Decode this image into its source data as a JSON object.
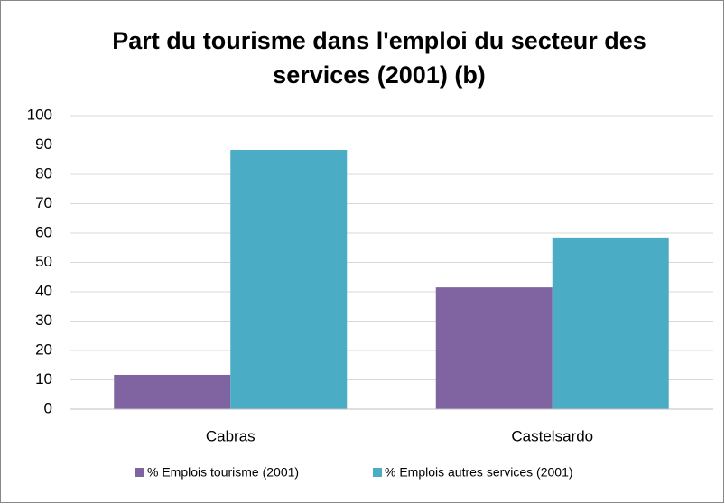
{
  "chart_data": {
    "type": "bar",
    "title": "Part du tourisme dans l'emploi du secteur des services (2001) (b)",
    "categories": [
      "Cabras",
      "Castelsardo"
    ],
    "series": [
      {
        "name": "% Emplois tourisme (2001)",
        "color": "#8064a2",
        "values": [
          11.7,
          41.5
        ]
      },
      {
        "name": "% Emplois autres services (2001)",
        "color": "#4bacc6",
        "values": [
          88.3,
          58.5
        ]
      }
    ],
    "ylim": [
      0,
      100
    ],
    "yticks": [
      0,
      10,
      20,
      30,
      40,
      50,
      60,
      70,
      80,
      90,
      100
    ],
    "grid": true,
    "legend": "bottom"
  }
}
